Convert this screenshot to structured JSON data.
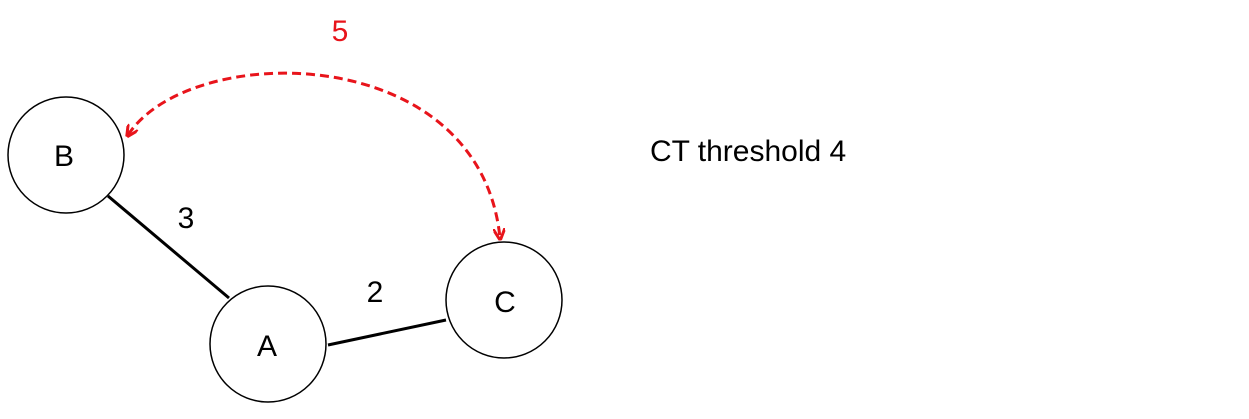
{
  "nodes": [
    {
      "label": "B"
    },
    {
      "label": "A"
    },
    {
      "label": "C"
    }
  ],
  "edges": [
    {
      "label": "3"
    },
    {
      "label": "2"
    }
  ],
  "dashed_edge": {
    "label": "5"
  },
  "note": "CT threshold 4"
}
